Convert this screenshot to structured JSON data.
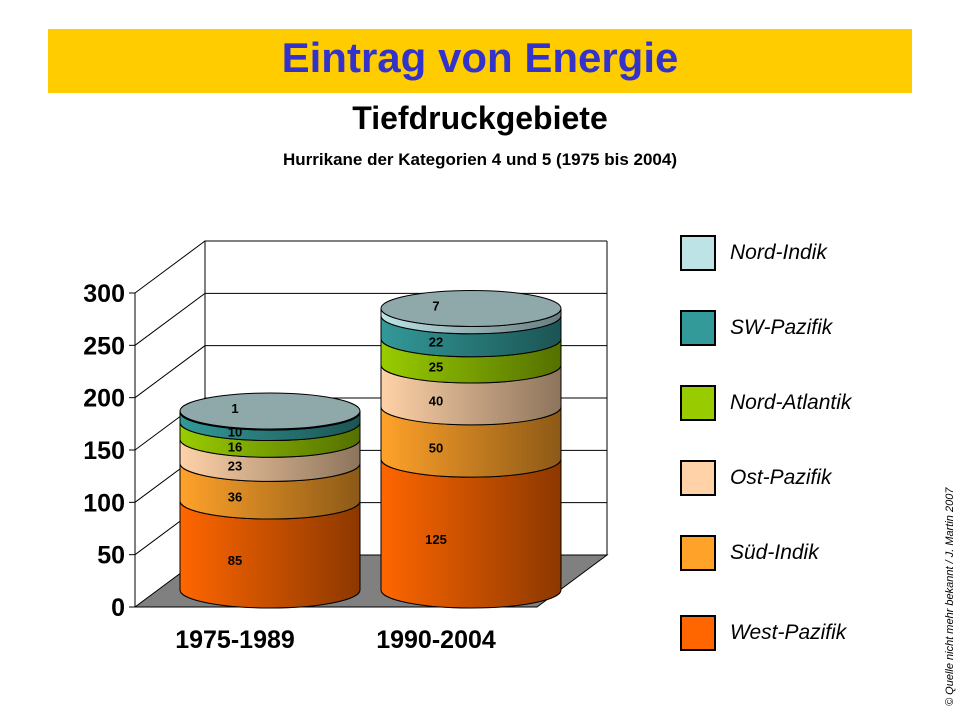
{
  "header": {
    "title": "Eintrag von Energie",
    "subtitle": "Tiefdruckgebiete",
    "caption": "Hurrikane der Kategorien 4 und 5 (1975 bis 2004)"
  },
  "credit": "© Quelle nicht mehr bekannt / J. Martin 2007",
  "chart_data": {
    "type": "bar",
    "stacked": true,
    "style": "3d-cylinder",
    "categories": [
      "1975-1989",
      "1990-2004"
    ],
    "ylim": [
      0,
      300
    ],
    "yticks": [
      0,
      50,
      100,
      150,
      200,
      250,
      300
    ],
    "grid": true,
    "legend_position": "right",
    "series": [
      {
        "name": "West-Pazifik",
        "values": [
          85,
          125
        ],
        "color": "#ff6600"
      },
      {
        "name": "Süd-Indik",
        "values": [
          36,
          50
        ],
        "color": "#ffa22a"
      },
      {
        "name": "Ost-Pazifik",
        "values": [
          23,
          40
        ],
        "color": "#ffd2a8"
      },
      {
        "name": "Nord-Atlantik",
        "values": [
          16,
          25
        ],
        "color": "#99cc00"
      },
      {
        "name": "SW-Pazifik",
        "values": [
          10,
          22
        ],
        "color": "#339999"
      },
      {
        "name": "Nord-Indik",
        "values": [
          1,
          7
        ],
        "color": "#bde3e6"
      }
    ],
    "top_color": "#8fa8aa"
  }
}
